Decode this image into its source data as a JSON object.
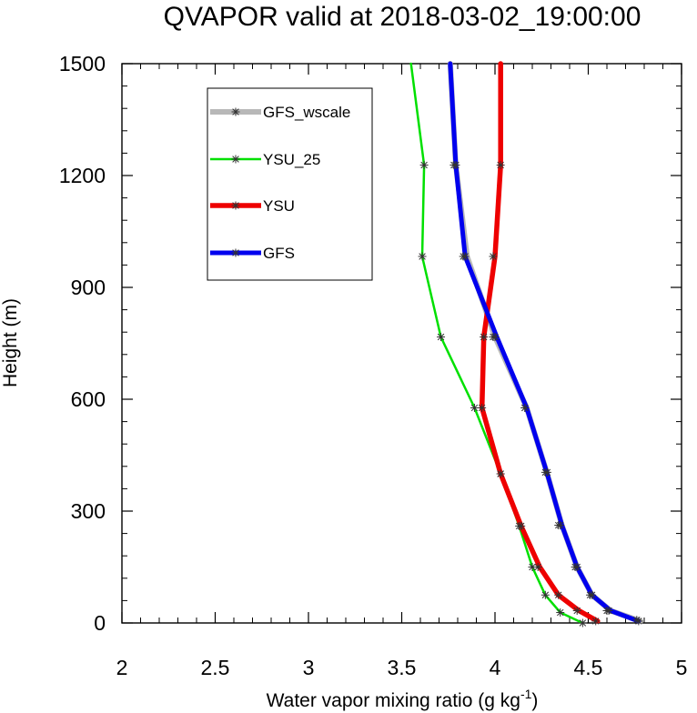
{
  "chart_data": {
    "type": "line",
    "title": "QVAPOR valid at 2018-03-02_19:00:00",
    "xlabel": "Water vapor mixing ratio (g kg",
    "xlabel_sup": "-1",
    "xlabel_end": ")",
    "ylabel": "Height (m)",
    "xlim": [
      2,
      5
    ],
    "ylim": [
      0,
      1500
    ],
    "x_ticks": [
      2,
      2.5,
      3,
      3.5,
      4,
      4.5,
      5
    ],
    "x_tick_labels": [
      "2",
      "2.5",
      "3",
      "3.5",
      "4",
      "4.5",
      "5"
    ],
    "y_ticks": [
      0,
      300,
      600,
      900,
      1200,
      1500
    ],
    "y_tick_labels": [
      "0",
      "300",
      "600",
      "900",
      "1200",
      "1500"
    ],
    "grid": false,
    "legend_position": "top-left",
    "series": [
      {
        "name": "GFS_wscale",
        "color": "#b8b8b8",
        "width": 6,
        "x": [
          4.78,
          4.62,
          4.52,
          4.44,
          4.36,
          4.28,
          4.17,
          4.0,
          3.85,
          3.79,
          3.76
        ],
        "y": [
          5,
          33,
          75,
          150,
          260,
          400,
          577,
          767,
          983,
          1228,
          1500
        ],
        "markers": [
          [
            4.76,
            8
          ],
          [
            4.6,
            33
          ],
          [
            4.51,
            75
          ],
          [
            4.43,
            150
          ],
          [
            4.34,
            262
          ],
          [
            4.27,
            404
          ],
          [
            4.16,
            577
          ],
          [
            3.99,
            767
          ],
          [
            3.83,
            983
          ],
          [
            3.78,
            1228
          ]
        ]
      },
      {
        "name": "YSU_25",
        "color": "#00e000",
        "width": 2.5,
        "x": [
          4.47,
          4.35,
          4.27,
          4.2,
          4.13,
          4.03,
          3.89,
          3.71,
          3.61,
          3.62,
          3.55
        ],
        "y": [
          0,
          28,
          75,
          150,
          260,
          400,
          577,
          767,
          983,
          1228,
          1500
        ],
        "markers": [
          [
            4.47,
            0
          ],
          [
            4.35,
            28
          ],
          [
            4.27,
            75
          ],
          [
            4.2,
            150
          ],
          [
            4.13,
            260
          ],
          [
            4.03,
            400
          ],
          [
            3.89,
            577
          ],
          [
            3.71,
            767
          ],
          [
            3.61,
            983
          ],
          [
            3.62,
            1228
          ]
        ]
      },
      {
        "name": "YSU",
        "color": "#ee0000",
        "width": 5.5,
        "x": [
          4.55,
          4.45,
          4.34,
          4.24,
          4.14,
          4.03,
          3.93,
          3.94,
          4.0,
          4.03,
          4.03
        ],
        "y": [
          5,
          33,
          75,
          150,
          260,
          400,
          577,
          767,
          983,
          1228,
          1500
        ],
        "markers": [
          [
            4.54,
            5
          ],
          [
            4.44,
            33
          ],
          [
            4.34,
            75
          ],
          [
            4.23,
            150
          ],
          [
            4.14,
            260
          ],
          [
            4.03,
            400
          ],
          [
            3.93,
            577
          ],
          [
            3.94,
            767
          ],
          [
            3.99,
            983
          ],
          [
            4.03,
            1228
          ]
        ]
      },
      {
        "name": "GFS",
        "color": "#0000ee",
        "width": 5,
        "x": [
          4.77,
          4.62,
          4.52,
          4.44,
          4.36,
          4.28,
          4.17,
          4.01,
          3.84,
          3.79,
          3.76
        ],
        "y": [
          5,
          33,
          75,
          150,
          260,
          400,
          577,
          767,
          983,
          1228,
          1500
        ],
        "markers": [
          [
            4.77,
            5
          ],
          [
            4.61,
            33
          ],
          [
            4.52,
            75
          ],
          [
            4.44,
            150
          ],
          [
            4.35,
            262
          ],
          [
            4.28,
            404
          ],
          [
            4.16,
            577
          ],
          [
            4.0,
            767
          ],
          [
            3.84,
            983
          ],
          [
            3.79,
            1228
          ]
        ]
      }
    ],
    "legend_order": [
      "GFS_wscale",
      "YSU_25",
      "YSU",
      "GFS"
    ]
  }
}
